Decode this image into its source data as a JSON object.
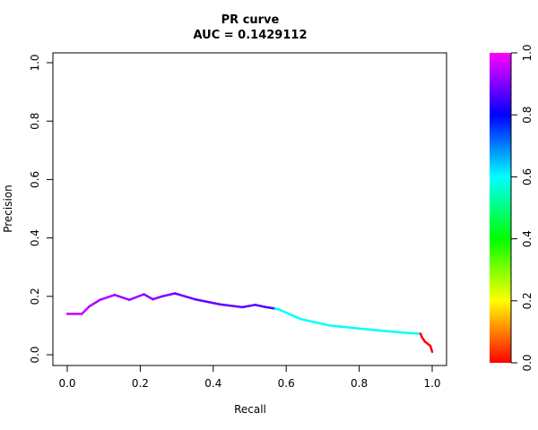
{
  "chart_data": {
    "type": "line",
    "title": "PR curve",
    "subtitle": "AUC = 0.1429112",
    "xlabel": "Recall",
    "ylabel": "Precision",
    "xlim": [
      0,
      1
    ],
    "ylim": [
      0,
      1
    ],
    "x_ticks": [
      "0.0",
      "0.2",
      "0.4",
      "0.6",
      "0.8",
      "1.0"
    ],
    "y_ticks": [
      "0.0",
      "0.2",
      "0.4",
      "0.6",
      "0.8",
      "1.0"
    ],
    "grid": false,
    "legend": "colorbar-right",
    "colorbar": {
      "range": [
        0,
        1
      ],
      "ticks": [
        "0.0",
        "0.2",
        "0.4",
        "0.6",
        "0.8",
        "1.0"
      ],
      "colors": [
        "#ff0000",
        "#ffff00",
        "#00ff00",
        "#00ffff",
        "#0000ff",
        "#ff00ff"
      ]
    },
    "series": [
      {
        "points": [
          {
            "x": 0.0,
            "y": 0.14,
            "c": "#c000ff"
          },
          {
            "x": 0.04,
            "y": 0.14,
            "c": "#c000ff"
          },
          {
            "x": 0.06,
            "y": 0.165,
            "c": "#c000ff"
          },
          {
            "x": 0.09,
            "y": 0.188,
            "c": "#b000ff"
          },
          {
            "x": 0.13,
            "y": 0.205,
            "c": "#b000ff"
          },
          {
            "x": 0.17,
            "y": 0.188,
            "c": "#a000ff"
          },
          {
            "x": 0.21,
            "y": 0.207,
            "c": "#9a00ff"
          },
          {
            "x": 0.235,
            "y": 0.19,
            "c": "#8a00ff"
          },
          {
            "x": 0.26,
            "y": 0.2,
            "c": "#8a00ff"
          },
          {
            "x": 0.295,
            "y": 0.21,
            "c": "#7800ff"
          },
          {
            "x": 0.35,
            "y": 0.19,
            "c": "#7000ff"
          },
          {
            "x": 0.42,
            "y": 0.172,
            "c": "#6400ff"
          },
          {
            "x": 0.48,
            "y": 0.163,
            "c": "#6000ff"
          },
          {
            "x": 0.515,
            "y": 0.171,
            "c": "#5800ff"
          },
          {
            "x": 0.545,
            "y": 0.163,
            "c": "#5000ff"
          },
          {
            "x": 0.57,
            "y": 0.158,
            "c": "#4a00ff"
          },
          {
            "x": 0.58,
            "y": 0.155,
            "c": "#00ffff"
          },
          {
            "x": 0.64,
            "y": 0.122,
            "c": "#00ffff"
          },
          {
            "x": 0.72,
            "y": 0.1,
            "c": "#00ffff"
          },
          {
            "x": 0.8,
            "y": 0.09,
            "c": "#00ffff"
          },
          {
            "x": 0.88,
            "y": 0.08,
            "c": "#00ffff"
          },
          {
            "x": 0.93,
            "y": 0.075,
            "c": "#00ffff"
          },
          {
            "x": 0.968,
            "y": 0.072,
            "c": "#00ffff"
          },
          {
            "x": 0.972,
            "y": 0.06,
            "c": "#ff0000"
          },
          {
            "x": 0.98,
            "y": 0.045,
            "c": "#ff0000"
          },
          {
            "x": 0.995,
            "y": 0.03,
            "c": "#ff0000"
          },
          {
            "x": 1.0,
            "y": 0.01,
            "c": "#ff0000"
          }
        ]
      }
    ]
  }
}
